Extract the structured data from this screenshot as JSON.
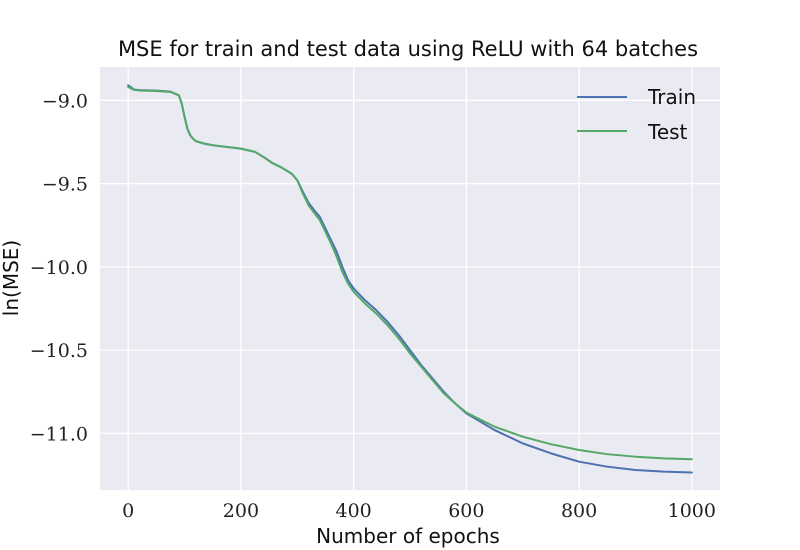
{
  "chart_data": {
    "type": "line",
    "title": "MSE for train and test data using ReLU with 64 batches",
    "xlabel": "Number of epochs",
    "ylabel": "ln(MSE)",
    "xlim": [
      -50,
      1050
    ],
    "ylim": [
      -11.34,
      -8.8
    ],
    "xticks": [
      0,
      200,
      400,
      600,
      800,
      1000
    ],
    "yticks": [
      -9.0,
      -9.5,
      -10.0,
      -10.5,
      -11.0
    ],
    "xtick_labels": [
      "0",
      "200",
      "400",
      "600",
      "800",
      "1000"
    ],
    "ytick_labels": [
      "−9.0",
      "−9.5",
      "−10.0",
      "−10.5",
      "−11.0"
    ],
    "grid": true,
    "legend_position": "top-right",
    "series": [
      {
        "name": "Train",
        "color": "#4c72b0",
        "x": [
          0,
          10,
          25,
          50,
          75,
          90,
          95,
          100,
          105,
          110,
          115,
          120,
          135,
          150,
          175,
          200,
          225,
          240,
          255,
          270,
          290,
          300,
          310,
          320,
          330,
          340,
          350,
          360,
          370,
          380,
          390,
          400,
          420,
          440,
          460,
          480,
          500,
          520,
          540,
          560,
          580,
          600,
          650,
          700,
          750,
          800,
          850,
          900,
          950,
          1000
        ],
        "y": [
          -8.91,
          -8.935,
          -8.94,
          -8.942,
          -8.948,
          -8.97,
          -9.02,
          -9.1,
          -9.17,
          -9.21,
          -9.23,
          -9.245,
          -9.26,
          -9.27,
          -9.28,
          -9.29,
          -9.31,
          -9.34,
          -9.375,
          -9.4,
          -9.44,
          -9.48,
          -9.55,
          -9.615,
          -9.66,
          -9.7,
          -9.77,
          -9.84,
          -9.91,
          -10.0,
          -10.08,
          -10.13,
          -10.2,
          -10.26,
          -10.33,
          -10.41,
          -10.5,
          -10.59,
          -10.67,
          -10.75,
          -10.82,
          -10.88,
          -10.98,
          -11.06,
          -11.12,
          -11.17,
          -11.2,
          -11.22,
          -11.23,
          -11.235
        ]
      },
      {
        "name": "Test",
        "color": "#55a868",
        "x": [
          0,
          10,
          25,
          50,
          75,
          90,
          95,
          100,
          105,
          110,
          115,
          120,
          135,
          150,
          175,
          200,
          225,
          240,
          255,
          270,
          290,
          300,
          310,
          320,
          330,
          340,
          350,
          360,
          370,
          380,
          390,
          400,
          420,
          440,
          460,
          480,
          500,
          520,
          540,
          560,
          580,
          600,
          650,
          700,
          750,
          800,
          850,
          900,
          950,
          1000
        ],
        "y": [
          -8.92,
          -8.937,
          -8.942,
          -8.944,
          -8.95,
          -8.97,
          -9.02,
          -9.1,
          -9.17,
          -9.21,
          -9.23,
          -9.245,
          -9.26,
          -9.27,
          -9.28,
          -9.29,
          -9.31,
          -9.34,
          -9.375,
          -9.4,
          -9.44,
          -9.48,
          -9.56,
          -9.63,
          -9.675,
          -9.72,
          -9.79,
          -9.86,
          -9.94,
          -10.03,
          -10.1,
          -10.15,
          -10.22,
          -10.28,
          -10.35,
          -10.43,
          -10.52,
          -10.6,
          -10.68,
          -10.76,
          -10.82,
          -10.875,
          -10.96,
          -11.02,
          -11.065,
          -11.1,
          -11.125,
          -11.14,
          -11.15,
          -11.155
        ]
      }
    ]
  }
}
